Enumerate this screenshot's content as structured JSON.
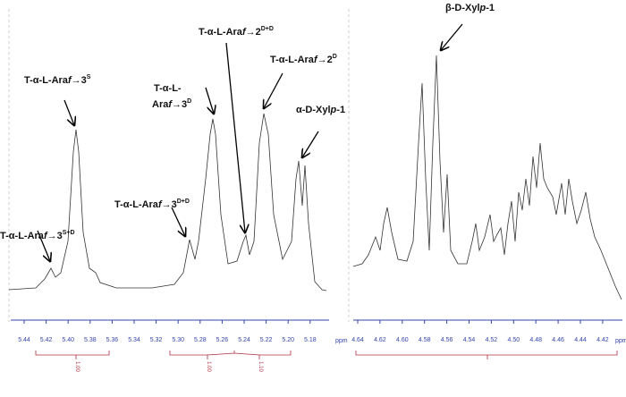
{
  "left_panel": {
    "unit": "ppm",
    "ticks": [
      "5.44",
      "5.42",
      "5.40",
      "5.38",
      "5.36",
      "5.34",
      "5.32",
      "5.30",
      "5.28",
      "5.26",
      "5.24",
      "5.22",
      "5.20",
      "5.18"
    ],
    "integrals": [
      "1.00",
      "1.00",
      "1.10"
    ],
    "annotations": [
      {
        "label": "T-α-L-Ara",
        "italic": "f",
        "tail": "→3",
        "sup": "S+D"
      },
      {
        "label": "T-α-L-Ara",
        "italic": "f",
        "tail": "→3",
        "sup": "S"
      },
      {
        "label": "T-α-L-Ara",
        "italic": "f",
        "tail": "→3",
        "sup": "D+D"
      },
      {
        "label": "T-α-L-",
        "label2": "Ara",
        "italic": "f",
        "tail": "→3",
        "sup": "D"
      },
      {
        "label": "T-α-L-Ara",
        "italic": "f",
        "tail": "→2",
        "sup": "D+D"
      },
      {
        "label": "T-α-L-Ara",
        "italic": "f",
        "tail": "→2",
        "sup": "D"
      },
      {
        "label": "α-D-Xyl",
        "italic": "p",
        "tail": "-1"
      }
    ]
  },
  "right_panel": {
    "unit": "ppm",
    "ticks": [
      "4.64",
      "4.62",
      "4.60",
      "4.58",
      "4.56",
      "4.54",
      "4.52",
      "4.50",
      "4.48",
      "4.46",
      "4.44",
      "4.42"
    ],
    "annotations": [
      {
        "label": "β-D-Xyl",
        "italic": "p",
        "tail": "-1"
      }
    ]
  }
}
